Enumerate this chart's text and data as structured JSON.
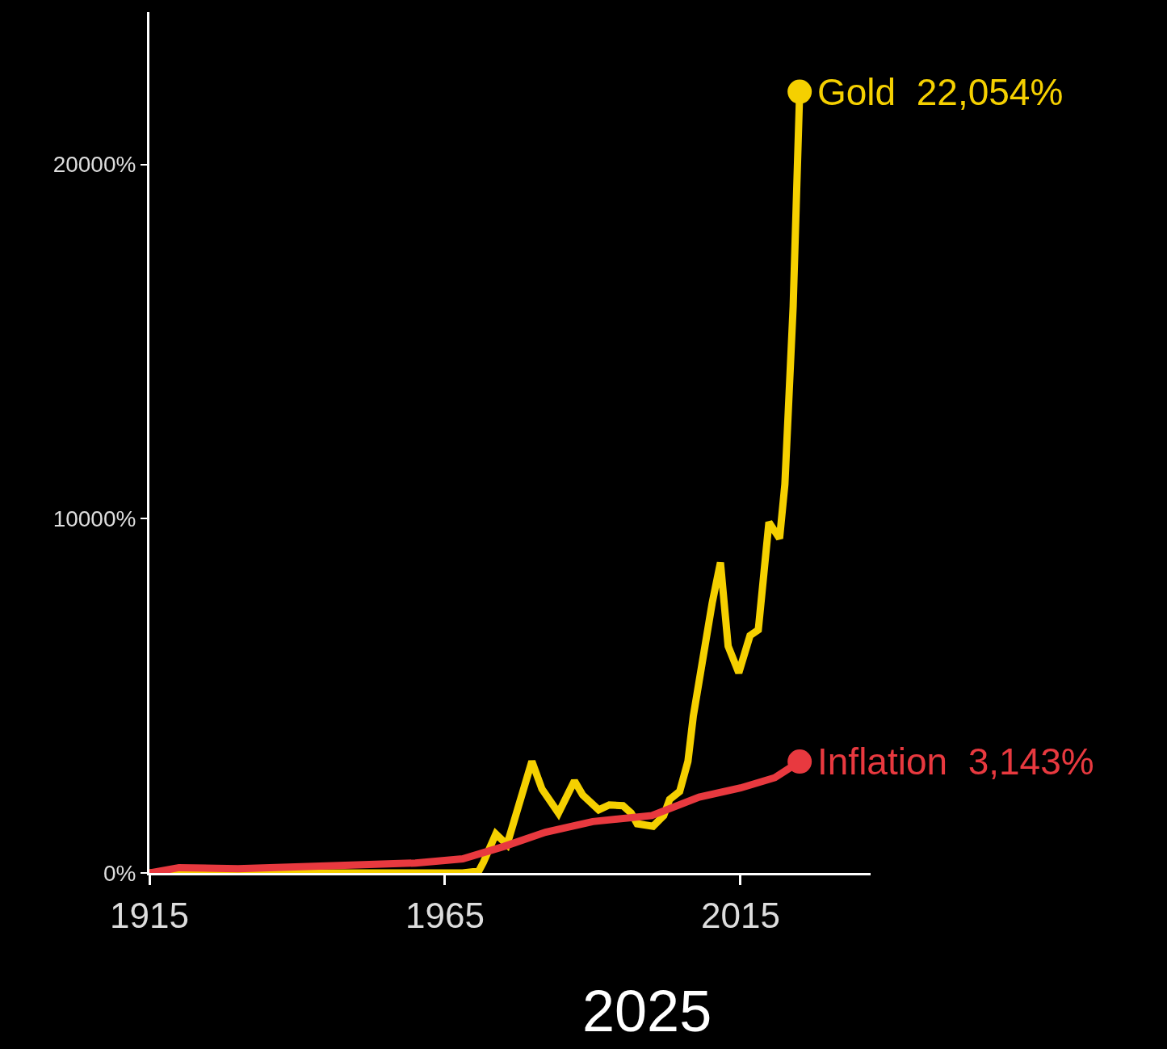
{
  "chart_data": {
    "type": "line",
    "annotations": [
      "2025"
    ],
    "xlim": [
      1915,
      2037
    ],
    "xticks": [
      1915,
      1965,
      2015
    ],
    "ylim": [
      0,
      24300
    ],
    "yticks": [
      {
        "value": 0,
        "label": "0%"
      },
      {
        "value": 10000,
        "label": "10000%"
      },
      {
        "value": 20000,
        "label": "20000%"
      }
    ],
    "grid": false,
    "legend": false,
    "series": [
      {
        "name": "Gold",
        "color": "#f5d000",
        "x": [
          1915,
          1930,
          1950,
          1968,
          1970.7,
          1971.5,
          1973.6,
          1975.5,
          1979.7,
          1981.4,
          1984.2,
          1986.9,
          1988.3,
          1991,
          1992.8,
          1995.1,
          1996.5,
          1997.5,
          2000.2,
          2002,
          2003,
          2004.7,
          2006.1,
          2007,
          2010.2,
          2011.6,
          2012.9,
          2014.7,
          2016.6,
          2018,
          2019.8,
          2021.6,
          2022.5,
          2023.9,
          2025
        ],
        "values": [
          0,
          0,
          0,
          0,
          50,
          300,
          1100,
          800,
          3150,
          2370,
          1690,
          2600,
          2200,
          1780,
          1920,
          1900,
          1690,
          1390,
          1320,
          1620,
          2075,
          2300,
          3150,
          4420,
          7620,
          8760,
          6400,
          5650,
          6700,
          6860,
          9900,
          9440,
          10970,
          16000,
          22054
        ],
        "value_labels": [
          null,
          null,
          null,
          null,
          null,
          null,
          null,
          null,
          null,
          null,
          null,
          null,
          null,
          null,
          null,
          null,
          null,
          null,
          null,
          null,
          null,
          null,
          null,
          null,
          null,
          null,
          null,
          null,
          null,
          null,
          null,
          null,
          null,
          null,
          "22,054%"
        ]
      },
      {
        "name": "Inflation",
        "color": "#e8393f",
        "x": [
          1915,
          1920,
          1930,
          1945,
          1960,
          1968,
          1975,
          1982,
          1990,
          2000,
          2008,
          2015,
          2020.8,
          2025
        ],
        "values": [
          0,
          150,
          120,
          200,
          280,
          400,
          750,
          1150,
          1450,
          1620,
          2140,
          2400,
          2690,
          3143
        ],
        "value_labels": [
          null,
          null,
          null,
          null,
          null,
          null,
          null,
          null,
          null,
          null,
          null,
          null,
          null,
          "3,143%"
        ]
      }
    ]
  }
}
